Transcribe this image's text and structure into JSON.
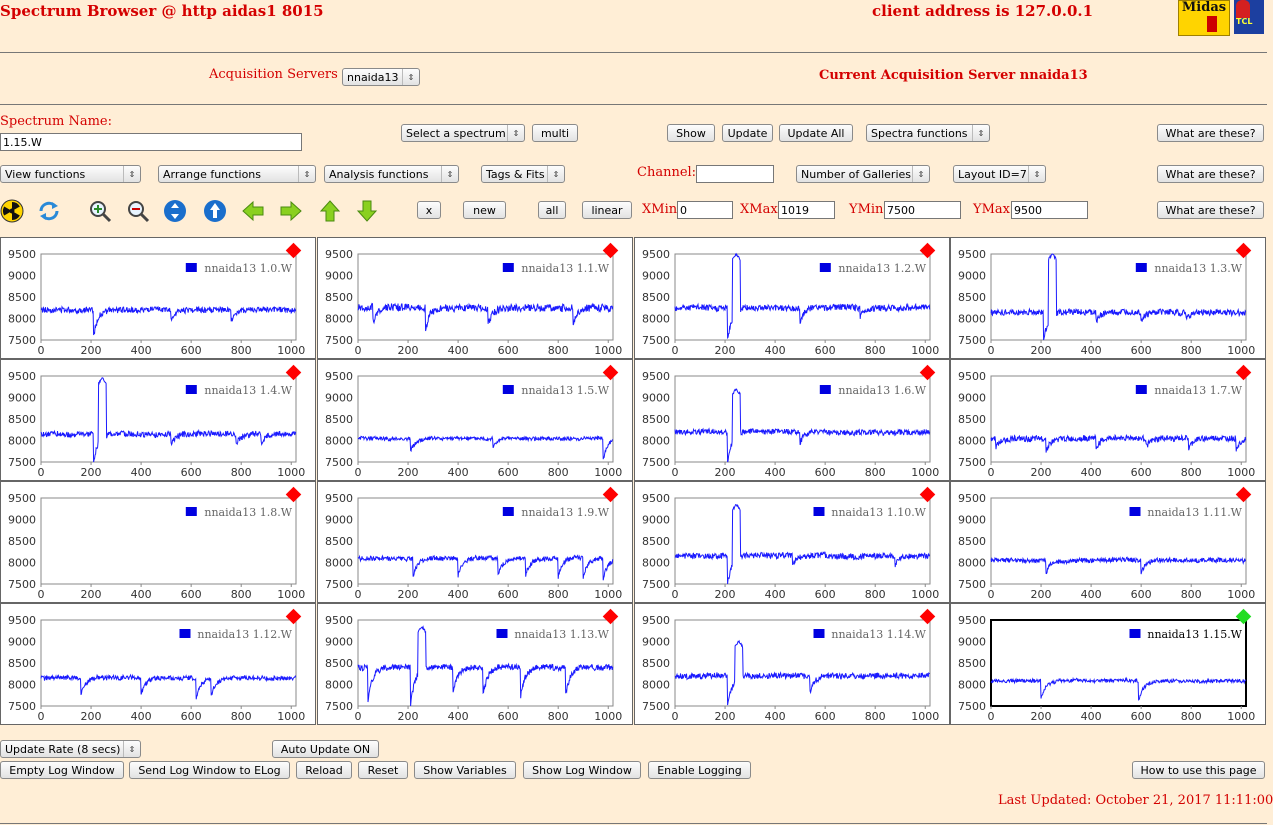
{
  "header": {
    "title": "Spectrum Browser @ http aidas1 8015",
    "client": "client address is 127.0.0.1",
    "logo1": "Midas",
    "logo2": "TCL"
  },
  "servers": {
    "label": "Acquisition Servers",
    "selected": "nnaida13",
    "current": "Current Acquisition Server nnaida13"
  },
  "spectrum": {
    "name_label": "Spectrum Name:",
    "name_value": "1.15.W",
    "select": "Select a spectrum",
    "multi": "multi",
    "show": "Show",
    "update": "Update",
    "update_all": "Update All",
    "spectra_functions": "Spectra functions",
    "what": "What are these?"
  },
  "row2": {
    "view": "View functions",
    "arrange": "Arrange functions",
    "analysis": "Analysis functions",
    "tags": "Tags & Fits",
    "channel_label": "Channel:",
    "channel_value": "",
    "galleries": "Number of Galleries",
    "layout": "Layout ID=7",
    "what": "What are these?"
  },
  "row3": {
    "tools": [
      "radiation-icon",
      "refresh-icon",
      "zoom-in-icon",
      "zoom-out-icon",
      "expand-vertical-icon",
      "expand-up-icon",
      "arrow-left-icon",
      "arrow-right-icon",
      "arrow-up-icon",
      "arrow-down-icon"
    ],
    "x": "x",
    "new": "new",
    "all": "all",
    "linear": "linear",
    "xmin_label": "XMin",
    "xmin": "0",
    "xmax_label": "XMax",
    "xmax": "1019",
    "ymin_label": "YMin",
    "ymin": "7500",
    "ymax_label": "YMax",
    "ymax": "9500",
    "what": "What are these?"
  },
  "bottom": {
    "rate": "Update Rate (8 secs)",
    "auto": "Auto Update ON",
    "buttons": [
      "Empty Log Window",
      "Send Log Window to ELog",
      "Reload",
      "Reset",
      "Show Variables",
      "Show Log Window",
      "Enable Logging"
    ],
    "howto": "How to use this page",
    "updated": "Last Updated: October 21, 2017 11:11:00"
  },
  "colors": {
    "background": "#ffeed6",
    "red": "#d40000",
    "trace": "#1a1aff",
    "marker_red": "#ff0000",
    "marker_green": "#22dd22"
  },
  "chart_data": {
    "type": "line",
    "xlim": [
      0,
      1019
    ],
    "ylim": [
      7500,
      9500
    ],
    "x_ticks": [
      "0",
      "200",
      "400",
      "600",
      "800",
      "1000"
    ],
    "y_ticks": [
      "9500",
      "9000",
      "8500",
      "8000",
      "7500"
    ],
    "panels": [
      {
        "name": "nnaida13 1.0.W",
        "marker": "red",
        "selected": false,
        "base": 8200,
        "noise": 110,
        "spike": null,
        "dips": [
          [
            210,
            7600
          ],
          [
            520,
            7950
          ],
          [
            760,
            7950
          ]
        ]
      },
      {
        "name": "nnaida13 1.1.W",
        "marker": "red",
        "selected": false,
        "base": 8250,
        "noise": 140,
        "spike": null,
        "dips": [
          [
            60,
            7900
          ],
          [
            270,
            7750
          ],
          [
            520,
            7850
          ],
          [
            860,
            7900
          ]
        ]
      },
      {
        "name": "nnaida13 1.2.W",
        "marker": "red",
        "selected": false,
        "base": 8250,
        "noise": 120,
        "spike": [
          230,
          260,
          9500
        ],
        "dips": [
          [
            210,
            7500
          ],
          [
            500,
            7950
          ],
          [
            740,
            8050
          ]
        ]
      },
      {
        "name": "nnaida13 1.3.W",
        "marker": "red",
        "selected": false,
        "base": 8150,
        "noise": 120,
        "spike": [
          230,
          260,
          9500
        ],
        "dips": [
          [
            210,
            7500
          ],
          [
            420,
            7950
          ],
          [
            600,
            7950
          ],
          [
            780,
            8000
          ]
        ]
      },
      {
        "name": "nnaida13 1.4.W",
        "marker": "red",
        "selected": false,
        "base": 8150,
        "noise": 110,
        "spike": [
          230,
          260,
          9450
        ],
        "dips": [
          [
            210,
            7500
          ],
          [
            520,
            7950
          ],
          [
            780,
            7950
          ],
          [
            880,
            7900
          ]
        ]
      },
      {
        "name": "nnaida13 1.5.W",
        "marker": "red",
        "selected": false,
        "base": 8050,
        "noise": 70,
        "spike": null,
        "dips": [
          [
            210,
            7750
          ],
          [
            540,
            7850
          ],
          [
            980,
            7550
          ]
        ]
      },
      {
        "name": "nnaida13 1.6.W",
        "marker": "red",
        "selected": false,
        "base": 8200,
        "noise": 100,
        "spike": [
          230,
          260,
          9200
        ],
        "dips": [
          [
            210,
            7500
          ],
          [
            500,
            7950
          ]
        ]
      },
      {
        "name": "nnaida13 1.7.W",
        "marker": "red",
        "selected": false,
        "base": 8050,
        "noise": 110,
        "spike": null,
        "dips": [
          [
            20,
            7850
          ],
          [
            220,
            7750
          ],
          [
            420,
            7800
          ],
          [
            620,
            7850
          ],
          [
            790,
            7800
          ],
          [
            980,
            7800
          ]
        ]
      },
      {
        "name": "nnaida13 1.8.W",
        "marker": "red",
        "selected": false,
        "base": null,
        "noise": 0,
        "spike": null,
        "dips": []
      },
      {
        "name": "nnaida13 1.9.W",
        "marker": "red",
        "selected": false,
        "base": 8100,
        "noise": 90,
        "spike": null,
        "dips": [
          [
            220,
            7650
          ],
          [
            400,
            7700
          ],
          [
            560,
            7700
          ],
          [
            670,
            7700
          ],
          [
            800,
            7650
          ],
          [
            900,
            7650
          ],
          [
            980,
            7600
          ]
        ]
      },
      {
        "name": "nnaida13 1.10.W",
        "marker": "red",
        "selected": false,
        "base": 8150,
        "noise": 110,
        "spike": [
          230,
          260,
          9350
        ],
        "dips": [
          [
            210,
            7500
          ],
          [
            470,
            7950
          ],
          [
            880,
            7950
          ]
        ]
      },
      {
        "name": "nnaida13 1.11.W",
        "marker": "red",
        "selected": false,
        "base": 8050,
        "noise": 90,
        "spike": null,
        "dips": [
          [
            220,
            7750
          ],
          [
            600,
            7750
          ]
        ]
      },
      {
        "name": "nnaida13 1.12.W",
        "marker": "red",
        "selected": false,
        "base": 8150,
        "noise": 90,
        "spike": null,
        "dips": [
          [
            160,
            7750
          ],
          [
            400,
            7750
          ],
          [
            620,
            7700
          ],
          [
            680,
            7750
          ]
        ]
      },
      {
        "name": "nnaida13 1.13.W",
        "marker": "red",
        "selected": false,
        "base": 8400,
        "noise": 110,
        "spike": [
          240,
          270,
          9350
        ],
        "dips": [
          [
            40,
            7650
          ],
          [
            210,
            7500
          ],
          [
            380,
            7800
          ],
          [
            500,
            7750
          ],
          [
            650,
            7750
          ],
          [
            830,
            7750
          ]
        ]
      },
      {
        "name": "nnaida13 1.14.W",
        "marker": "red",
        "selected": false,
        "base": 8200,
        "noise": 110,
        "spike": [
          240,
          270,
          9000
        ],
        "dips": [
          [
            210,
            7500
          ],
          [
            540,
            7800
          ]
        ]
      },
      {
        "name": "nnaida13 1.15.W",
        "marker": "green",
        "selected": true,
        "base": 8080,
        "noise": 70,
        "spike": null,
        "dips": [
          [
            200,
            7650
          ],
          [
            590,
            7600
          ]
        ]
      }
    ]
  }
}
